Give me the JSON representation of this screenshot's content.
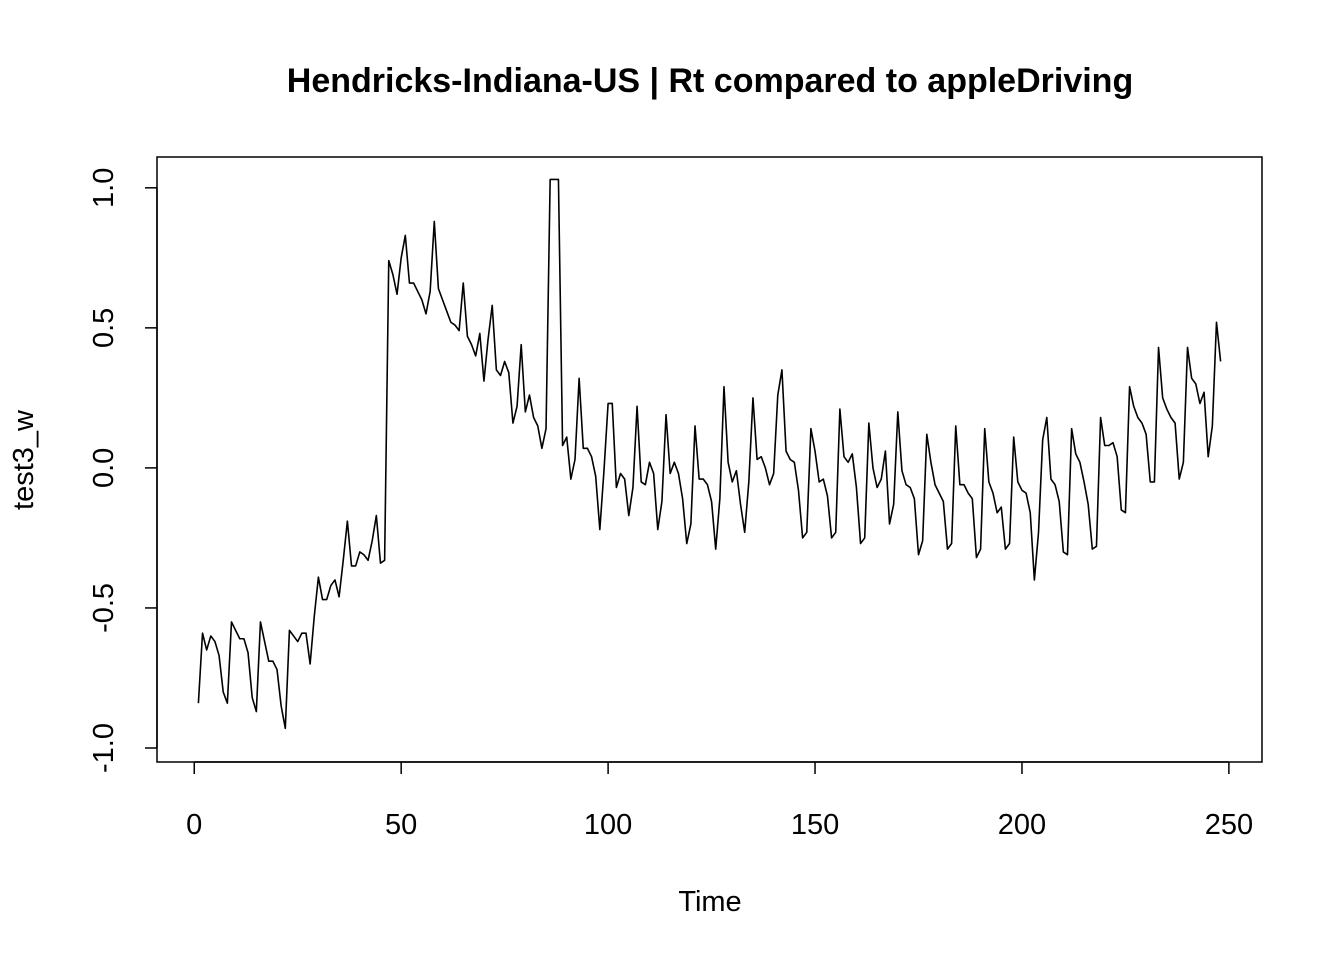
{
  "chart_data": {
    "type": "line",
    "title": "Hendricks-Indiana-US | Rt compared to appleDriving",
    "xlabel": "Time",
    "ylabel": "test3_w",
    "xlim": [
      -9,
      258
    ],
    "ylim": [
      -1.05,
      1.11
    ],
    "x_ticks": [
      0,
      50,
      100,
      150,
      200,
      250
    ],
    "x_tick_labels": [
      "0",
      "50",
      "100",
      "150",
      "200",
      "250"
    ],
    "y_ticks": [
      -1.0,
      -0.5,
      0.0,
      0.5,
      1.0
    ],
    "y_tick_labels": [
      "-1.0",
      "-0.5",
      "0.0",
      "0.5",
      "1.0"
    ],
    "grid": false,
    "legend": "none",
    "series": [
      {
        "color": "#000000",
        "x_start": 1,
        "values": [
          -0.84,
          -0.59,
          -0.65,
          -0.6,
          -0.62,
          -0.67,
          -0.8,
          -0.84,
          -0.55,
          -0.58,
          -0.61,
          -0.61,
          -0.66,
          -0.82,
          -0.87,
          -0.55,
          -0.62,
          -0.69,
          -0.69,
          -0.72,
          -0.85,
          -0.93,
          -0.58,
          -0.6,
          -0.62,
          -0.59,
          -0.59,
          -0.7,
          -0.53,
          -0.39,
          -0.47,
          -0.47,
          -0.42,
          -0.4,
          -0.46,
          -0.33,
          -0.19,
          -0.35,
          -0.35,
          -0.3,
          -0.31,
          -0.33,
          -0.26,
          -0.17,
          -0.34,
          -0.33,
          0.74,
          0.69,
          0.62,
          0.75,
          0.83,
          0.66,
          0.66,
          0.63,
          0.6,
          0.55,
          0.63,
          0.88,
          0.64,
          0.6,
          0.56,
          0.52,
          0.51,
          0.49,
          0.66,
          0.47,
          0.44,
          0.4,
          0.48,
          0.31,
          0.46,
          0.58,
          0.35,
          0.33,
          0.38,
          0.34,
          0.16,
          0.22,
          0.44,
          0.2,
          0.26,
          0.18,
          0.15,
          0.07,
          0.14,
          1.03,
          1.03,
          1.03,
          0.08,
          0.11,
          -0.04,
          0.03,
          0.32,
          0.07,
          0.07,
          0.04,
          -0.03,
          -0.22,
          -0.01,
          0.23,
          0.23,
          -0.07,
          -0.02,
          -0.04,
          -0.17,
          -0.07,
          0.22,
          -0.05,
          -0.06,
          0.02,
          -0.02,
          -0.22,
          -0.12,
          0.19,
          -0.02,
          0.02,
          -0.02,
          -0.11,
          -0.27,
          -0.2,
          0.15,
          -0.04,
          -0.04,
          -0.06,
          -0.12,
          -0.29,
          -0.11,
          0.29,
          0.02,
          -0.05,
          -0.01,
          -0.13,
          -0.23,
          -0.05,
          0.25,
          0.03,
          0.04,
          0.0,
          -0.06,
          -0.02,
          0.26,
          0.35,
          0.06,
          0.03,
          0.02,
          -0.08,
          -0.25,
          -0.23,
          0.14,
          0.06,
          -0.05,
          -0.04,
          -0.1,
          -0.25,
          -0.23,
          0.21,
          0.04,
          0.02,
          0.05,
          -0.07,
          -0.27,
          -0.25,
          0.16,
          0.0,
          -0.07,
          -0.04,
          0.06,
          -0.2,
          -0.13,
          0.2,
          -0.01,
          -0.06,
          -0.07,
          -0.11,
          -0.31,
          -0.26,
          0.12,
          0.02,
          -0.06,
          -0.09,
          -0.12,
          -0.29,
          -0.27,
          0.15,
          -0.06,
          -0.06,
          -0.09,
          -0.11,
          -0.32,
          -0.29,
          0.14,
          -0.05,
          -0.09,
          -0.16,
          -0.14,
          -0.29,
          -0.27,
          0.11,
          -0.05,
          -0.08,
          -0.09,
          -0.16,
          -0.4,
          -0.23,
          0.1,
          0.18,
          -0.04,
          -0.06,
          -0.12,
          -0.3,
          -0.31,
          0.14,
          0.05,
          0.02,
          -0.05,
          -0.13,
          -0.29,
          -0.28,
          0.18,
          0.08,
          0.08,
          0.09,
          0.04,
          -0.15,
          -0.16,
          0.29,
          0.22,
          0.18,
          0.16,
          0.12,
          -0.05,
          -0.05,
          0.43,
          0.25,
          0.21,
          0.18,
          0.16,
          -0.04,
          0.02,
          0.43,
          0.32,
          0.3,
          0.23,
          0.27,
          0.04,
          0.15,
          0.52,
          0.38
        ]
      }
    ]
  }
}
